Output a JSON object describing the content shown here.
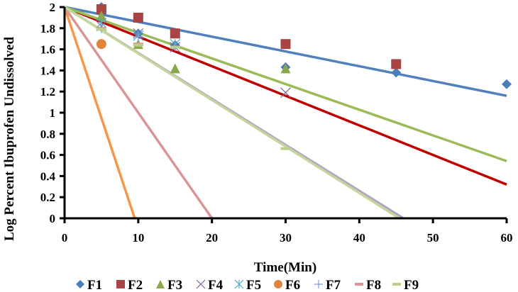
{
  "chart_data": {
    "type": "scatter",
    "title": "",
    "xlabel": "Time(Min)",
    "ylabel": "Log Percent Ibuprofen Undissolved",
    "xlim": [
      0,
      60
    ],
    "ylim": [
      0,
      2
    ],
    "xticks": [
      0,
      10,
      20,
      30,
      40,
      50,
      60
    ],
    "yticks": [
      0,
      0.2,
      0.4,
      0.6,
      0.8,
      1,
      1.2,
      1.4,
      1.6,
      1.8,
      2
    ],
    "ytick_labels": [
      "0",
      "0.2",
      "0.4",
      "0.6",
      "0.8",
      "1",
      "1.2",
      "1.4",
      "1.6",
      "1.8",
      "2"
    ],
    "grid": false,
    "legend_placement": "bottom",
    "series": [
      {
        "name": "F1",
        "marker": "diamond",
        "color": "#4a7ebb",
        "line_color": "#4f81bd",
        "x": [
          0,
          5,
          10,
          15,
          30,
          45,
          60
        ],
        "y": [
          2,
          2.0,
          1.75,
          1.64,
          1.43,
          1.38,
          1.27
        ],
        "trend": {
          "intercept": 2,
          "slope": -0.014
        }
      },
      {
        "name": "F2",
        "marker": "square",
        "color": "#a84443",
        "x": [
          0,
          5,
          10,
          15,
          30,
          45
        ],
        "y": [
          2,
          1.98,
          1.9,
          1.75,
          1.65,
          1.46
        ]
      },
      {
        "name": "F3",
        "marker": "triangle",
        "color": "#8aa84a",
        "x": [
          0,
          5,
          10,
          15,
          30
        ],
        "y": [
          2,
          1.92,
          1.65,
          1.42,
          1.42
        ]
      },
      {
        "name": "F4",
        "marker": "x",
        "color": "#8064a2",
        "x": [
          0,
          5,
          10,
          15,
          30
        ],
        "y": [
          2,
          1.82,
          1.75,
          1.62,
          1.19
        ]
      },
      {
        "name": "F5",
        "marker": "star",
        "color": "#4bacc6",
        "x": [
          0,
          5,
          10,
          15
        ],
        "y": [
          2,
          1.85,
          1.73,
          1.65
        ]
      },
      {
        "name": "F6",
        "marker": "circle",
        "color": "#e0843d",
        "x": [
          0,
          5
        ],
        "y": [
          2,
          1.65
        ]
      },
      {
        "name": "F7",
        "marker": "plus",
        "color": "#7e9fd4",
        "x": [
          0,
          5,
          10,
          15
        ],
        "y": [
          2,
          1.8,
          1.72,
          1.63
        ]
      },
      {
        "name": "F8",
        "marker": "dash",
        "color": "#d99694",
        "x": [
          0,
          5,
          10
        ],
        "y": [
          2,
          1.8,
          1.65
        ]
      },
      {
        "name": "F9",
        "marker": "dash",
        "color": "#b8cf8f",
        "x": [
          0,
          5,
          10,
          15,
          30
        ],
        "y": [
          2,
          1.79,
          1.64,
          1.62,
          0.66
        ]
      }
    ],
    "trendlines": [
      {
        "series": "F1",
        "color": "#4f81bd",
        "intercept": 2,
        "slope": -0.014
      },
      {
        "series": "F2",
        "color": "#c00000",
        "intercept": 2,
        "slope": -0.028
      },
      {
        "series": "F3",
        "color": "#9bbb59",
        "intercept": 2,
        "slope": -0.0243
      },
      {
        "series": "F4",
        "color": "#b3a2c7",
        "intercept": 2,
        "slope": -0.0435
      },
      {
        "series": "F6",
        "color": "#f79646",
        "intercept": 2,
        "slope": -0.21
      },
      {
        "series": "F8",
        "color": "#d99694",
        "intercept": 2,
        "slope": -0.1
      },
      {
        "series": "F9",
        "color": "#c3d69b",
        "intercept": 2,
        "slope": -0.044
      }
    ]
  }
}
